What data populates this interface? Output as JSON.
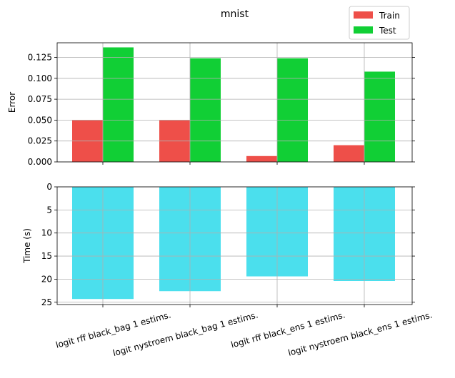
{
  "chart_data": [
    {
      "type": "bar",
      "title": "mnist",
      "xlabel": "",
      "ylabel": "Error",
      "ylim": [
        0,
        0.1425
      ],
      "yticks": [
        "0.000",
        "0.025",
        "0.050",
        "0.075",
        "0.100",
        "0.125"
      ],
      "grid": true,
      "legend": "top-right",
      "categories": [
        "logit rff black_bag 1 estims.",
        "logit nystroem black_bag 1 estims.",
        "logit rff black_ens 1 estims.",
        "logit nystroem black_ens 1 estims."
      ],
      "series": [
        {
          "name": "Train",
          "color": "#ee4f49",
          "values": [
            0.05,
            0.05,
            0.007,
            0.02
          ]
        },
        {
          "name": "Test",
          "color": "#11cf35",
          "values": [
            0.137,
            0.124,
            0.124,
            0.108
          ]
        }
      ]
    },
    {
      "type": "bar",
      "title": "",
      "xlabel": "",
      "ylabel": "Time (s)",
      "ylim": [
        0,
        25.5
      ],
      "y_inverted": true,
      "yticks": [
        "0",
        "5",
        "10",
        "15",
        "20",
        "25"
      ],
      "grid": true,
      "categories": [
        "logit rff black_bag 1 estims.",
        "logit nystroem black_bag 1 estims.",
        "logit rff black_ens 1 estims.",
        "logit nystroem black_ens 1 estims."
      ],
      "series": [
        {
          "color": "#4bdfed",
          "values": [
            24.3,
            22.6,
            19.4,
            20.4
          ]
        }
      ]
    }
  ]
}
